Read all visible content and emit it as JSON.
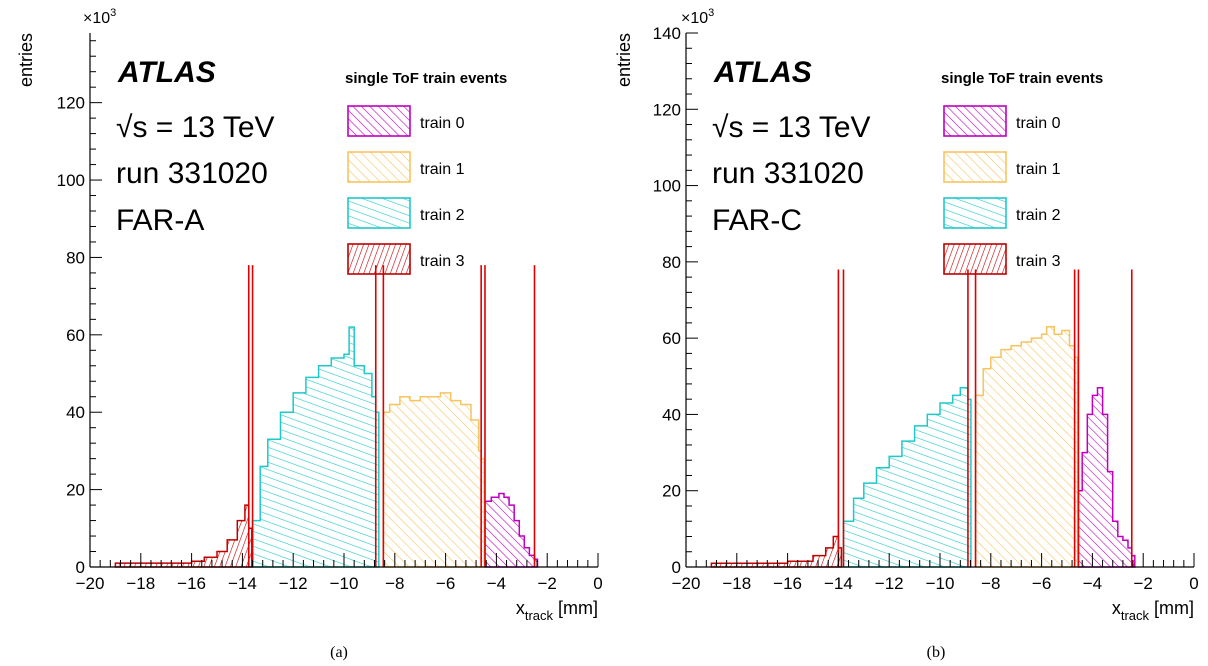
{
  "figure": {
    "panels": [
      {
        "caption": "(a)",
        "exponent_base": "×10",
        "exponent_power": "3",
        "atlas_label": "ATLAS",
        "energy_label": "√s = 13 TeV",
        "run_label": "run 331020",
        "station_label": "FAR-A",
        "legend_title": "single ToF train events"
      },
      {
        "caption": "(b)",
        "exponent_base": "×10",
        "exponent_power": "3",
        "atlas_label": "ATLAS",
        "energy_label": "√s = 13 TeV",
        "run_label": "run 331020",
        "station_label": "FAR-C",
        "legend_title": "single ToF train events"
      }
    ]
  },
  "chart_data": [
    {
      "type": "histogram",
      "ylabel": "entries",
      "xlabel_main": "x",
      "xlabel_sub": "track",
      "xlabel_unit": " [mm]",
      "xlim": [
        -20,
        0
      ],
      "ylim": [
        0,
        138
      ],
      "x_ticks": [
        -20,
        -18,
        -16,
        -14,
        -12,
        -10,
        -8,
        -6,
        -4,
        -2,
        0
      ],
      "x_tick_labels": [
        "−20",
        "−18",
        "−16",
        "−14",
        "−12",
        "−10",
        "−8",
        "−6",
        "−4",
        "−2",
        "0"
      ],
      "y_ticks": [
        0,
        20,
        40,
        60,
        80,
        100,
        120
      ],
      "y_tick_labels": [
        "0",
        "20",
        "40",
        "60",
        "80",
        "100",
        "120"
      ],
      "legend_position": "top-right",
      "vertical_lines": [
        -13.75,
        -13.6,
        -8.75,
        -8.45,
        -4.6,
        -4.45,
        -2.5
      ],
      "series": [
        {
          "name": "train 0",
          "color": "#c000c0",
          "pattern": "diag-right",
          "points": [
            [
              -4.45,
              17
            ],
            [
              -4.2,
              18
            ],
            [
              -3.9,
              19
            ],
            [
              -3.7,
              18
            ],
            [
              -3.5,
              16
            ],
            [
              -3.3,
              12
            ],
            [
              -3.1,
              8
            ],
            [
              -2.9,
              5
            ],
            [
              -2.7,
              3
            ],
            [
              -2.5,
              2
            ]
          ]
        },
        {
          "name": "train 1",
          "color": "#f6c460",
          "pattern": "diag-right",
          "points": [
            [
              -8.45,
              40
            ],
            [
              -8.2,
              42
            ],
            [
              -7.8,
              44
            ],
            [
              -7.4,
              43
            ],
            [
              -7.0,
              44
            ],
            [
              -6.6,
              44
            ],
            [
              -6.2,
              45
            ],
            [
              -5.8,
              43
            ],
            [
              -5.4,
              42
            ],
            [
              -5.0,
              38
            ],
            [
              -4.7,
              30
            ],
            [
              -4.6,
              28
            ]
          ]
        },
        {
          "name": "train 2",
          "color": "#20c8c8",
          "pattern": "diag-left",
          "points": [
            [
              -13.6,
              12
            ],
            [
              -13.3,
              26
            ],
            [
              -13.0,
              33
            ],
            [
              -12.5,
              40
            ],
            [
              -12.0,
              45
            ],
            [
              -11.5,
              49
            ],
            [
              -11.0,
              52
            ],
            [
              -10.5,
              54
            ],
            [
              -10.0,
              55
            ],
            [
              -9.8,
              62
            ],
            [
              -9.6,
              52
            ],
            [
              -9.2,
              50
            ],
            [
              -8.9,
              44
            ],
            [
              -8.75,
              40
            ]
          ]
        },
        {
          "name": "train 3",
          "color": "#c00000",
          "pattern": "diag-steep",
          "points": [
            [
              -19.0,
              1
            ],
            [
              -17.0,
              1
            ],
            [
              -16.0,
              1.5
            ],
            [
              -15.5,
              2.5
            ],
            [
              -15.0,
              4
            ],
            [
              -14.6,
              7
            ],
            [
              -14.2,
              12
            ],
            [
              -13.9,
              16
            ],
            [
              -13.75,
              10
            ]
          ]
        }
      ]
    },
    {
      "type": "histogram",
      "ylabel": "entries",
      "xlabel_main": "x",
      "xlabel_sub": "track",
      "xlabel_unit": " [mm]",
      "xlim": [
        -20,
        0
      ],
      "ylim": [
        0,
        140
      ],
      "x_ticks": [
        -20,
        -18,
        -16,
        -14,
        -12,
        -10,
        -8,
        -6,
        -4,
        -2,
        0
      ],
      "x_tick_labels": [
        "−20",
        "−18",
        "−16",
        "−14",
        "−12",
        "−10",
        "−8",
        "−6",
        "−4",
        "−2",
        "0"
      ],
      "y_ticks": [
        0,
        20,
        40,
        60,
        80,
        100,
        120,
        140
      ],
      "y_tick_labels": [
        "0",
        "20",
        "40",
        "60",
        "80",
        "100",
        "120",
        "140"
      ],
      "legend_position": "top-right",
      "vertical_lines": [
        -14.0,
        -13.8,
        -8.9,
        -8.6,
        -4.7,
        -4.55,
        -2.45
      ],
      "series": [
        {
          "name": "train 0",
          "color": "#c000c0",
          "pattern": "diag-right",
          "points": [
            [
              -4.55,
              20
            ],
            [
              -4.4,
              30
            ],
            [
              -4.2,
              40
            ],
            [
              -4.0,
              45
            ],
            [
              -3.8,
              47
            ],
            [
              -3.6,
              40
            ],
            [
              -3.4,
              25
            ],
            [
              -3.2,
              12
            ],
            [
              -3.0,
              8
            ],
            [
              -2.8,
              7
            ],
            [
              -2.6,
              5
            ],
            [
              -2.45,
              3
            ]
          ]
        },
        {
          "name": "train 1",
          "color": "#f6c460",
          "pattern": "diag-right",
          "points": [
            [
              -8.6,
              45
            ],
            [
              -8.3,
              52
            ],
            [
              -8.0,
              55
            ],
            [
              -7.6,
              57
            ],
            [
              -7.2,
              58
            ],
            [
              -6.8,
              59
            ],
            [
              -6.4,
              60
            ],
            [
              -6.0,
              61
            ],
            [
              -5.8,
              63
            ],
            [
              -5.5,
              61
            ],
            [
              -5.2,
              62
            ],
            [
              -4.9,
              58
            ],
            [
              -4.7,
              55
            ]
          ]
        },
        {
          "name": "train 2",
          "color": "#20c8c8",
          "pattern": "diag-left",
          "points": [
            [
              -13.8,
              12
            ],
            [
              -13.4,
              18
            ],
            [
              -13.0,
              22
            ],
            [
              -12.5,
              26
            ],
            [
              -12.0,
              29
            ],
            [
              -11.5,
              33
            ],
            [
              -11.0,
              37
            ],
            [
              -10.5,
              40
            ],
            [
              -10.0,
              43
            ],
            [
              -9.5,
              45
            ],
            [
              -9.2,
              47
            ],
            [
              -8.9,
              44
            ]
          ]
        },
        {
          "name": "train 3",
          "color": "#c00000",
          "pattern": "diag-steep",
          "points": [
            [
              -19.0,
              1
            ],
            [
              -17.0,
              1
            ],
            [
              -16.0,
              1.5
            ],
            [
              -15.0,
              3
            ],
            [
              -14.5,
              5
            ],
            [
              -14.2,
              8
            ],
            [
              -14.0,
              5
            ]
          ]
        }
      ]
    }
  ]
}
